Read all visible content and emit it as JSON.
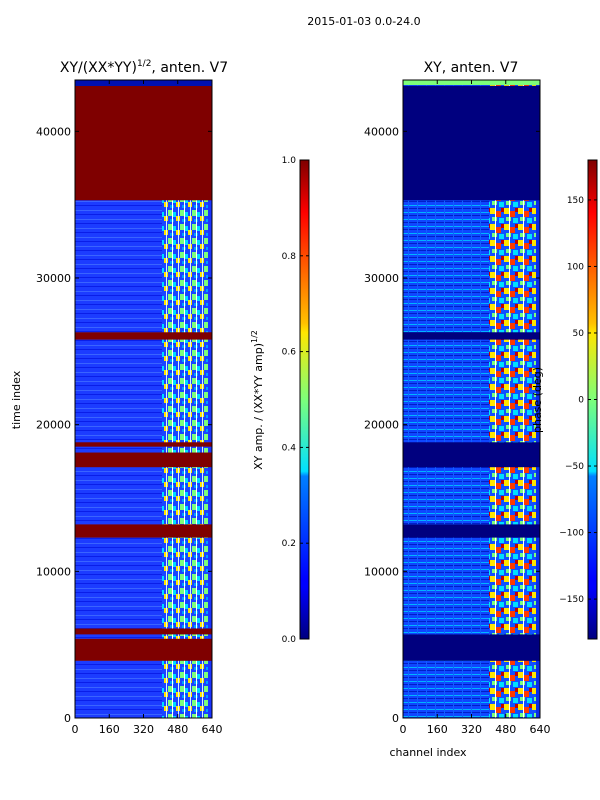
{
  "suptitle": "2015-01-03 0.0-24.0",
  "chart_data": [
    {
      "type": "heatmap",
      "title": "XY/(XX*YY)^{1/2}, anten. V7",
      "title_main": "XY/(XX*YY)",
      "title_exp": "1/2",
      "title_suffix": ", anten. V7",
      "xlabel": "",
      "ylabel": "time index",
      "xlim": [
        0,
        640
      ],
      "ylim": [
        0,
        43500
      ],
      "xticks": [
        0,
        160,
        320,
        480,
        640
      ],
      "yticks": [
        0,
        10000,
        20000,
        30000,
        40000
      ],
      "colormap": "jet",
      "fill_bands": [
        {
          "y0": 35300,
          "y1": 43100
        },
        {
          "y0": 25800,
          "y1": 26300
        },
        {
          "y0": 18500,
          "y1": 18800
        },
        {
          "y0": 17100,
          "y1": 18100
        },
        {
          "y0": 12300,
          "y1": 13200
        },
        {
          "y0": 5700,
          "y1": 6100
        },
        {
          "y0": 3900,
          "y1": 5400
        }
      ],
      "colorbar": {
        "label": "XY amp. / (XX*YY amp)^{1/2}",
        "label_main": "XY amp. / (XX*YY amp)",
        "label_exp": "1/2",
        "range": [
          0.0,
          1.0
        ],
        "ticks": [
          "0.0",
          "0.2",
          "0.4",
          "0.6",
          "0.8",
          "1.0"
        ]
      }
    },
    {
      "type": "heatmap",
      "title": "XY, anten. V7",
      "xlabel": "channel index",
      "ylabel": "",
      "xlim": [
        0,
        640
      ],
      "ylim": [
        0,
        43500
      ],
      "xticks": [
        0,
        160,
        320,
        480,
        640
      ],
      "yticks": [
        0,
        10000,
        20000,
        30000,
        40000
      ],
      "colormap": "jet",
      "fill_bands": [
        {
          "y0": 35300,
          "y1": 43100
        },
        {
          "y0": 25800,
          "y1": 26300
        },
        {
          "y0": 17100,
          "y1": 18800
        },
        {
          "y0": 12300,
          "y1": 13200
        },
        {
          "y0": 3900,
          "y1": 5700
        }
      ],
      "colorbar": {
        "label": "phase (deg)",
        "range": [
          -180,
          180
        ],
        "ticks": [
          "−150",
          "−100",
          "−50",
          "0",
          "50",
          "100",
          "150"
        ]
      }
    }
  ]
}
